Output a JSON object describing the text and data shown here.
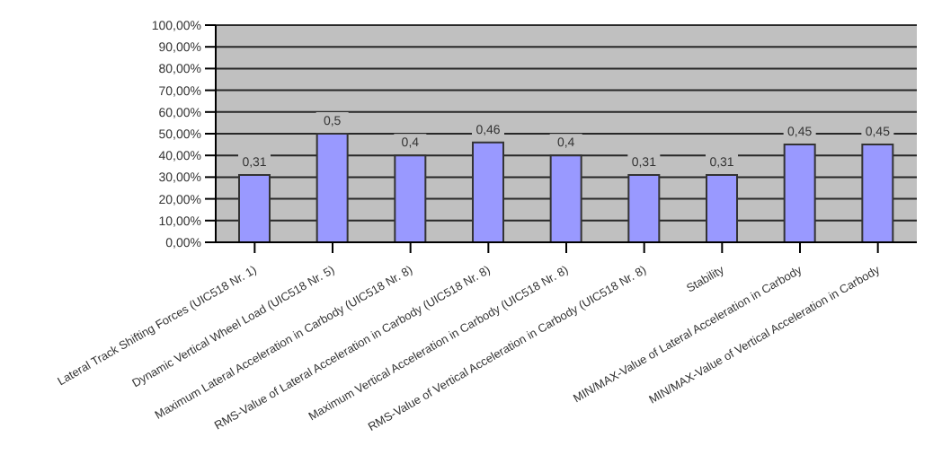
{
  "chart_data": {
    "type": "bar",
    "categories": [
      "Lateral Track Shifting Forces (UIC518 Nr. 1)",
      "Dynamic Vertical Wheel Load (UIC518 Nr. 5)",
      "Maximum Lateral Acceleration in Carbody (UIC518 Nr. 8)",
      "RMS-Value of Lateral Acceleration in Carbody (UIC518 Nr. 8)",
      "Maximum Vertical Acceleration in Carbody (UIC518 Nr. 8)",
      "RMS-Value of Vertical Acceleration in Carbody (UIC518 Nr. 8)",
      "Stability",
      "MIN/MAX-Value of Lateral Acceleration in Carbody",
      "MIN/MAX-Value of Vertical Acceleration in Carbody"
    ],
    "values": [
      0.31,
      0.5,
      0.4,
      0.46,
      0.4,
      0.31,
      0.31,
      0.45,
      0.45
    ],
    "value_labels": [
      "0,31",
      "0,5",
      "0,4",
      "0,46",
      "0,4",
      "0,31",
      "0,31",
      "0,45",
      "0,45"
    ],
    "color": "#9999ff",
    "ylim": [
      0,
      1
    ],
    "yticks": [
      {
        "value": 0,
        "label": "0,00%"
      },
      {
        "value": 0.1,
        "label": "10,00%"
      },
      {
        "value": 0.2,
        "label": "20,00%"
      },
      {
        "value": 0.3,
        "label": "30,00%"
      },
      {
        "value": 0.4,
        "label": "40,00%"
      },
      {
        "value": 0.5,
        "label": "50,00%"
      },
      {
        "value": 0.6,
        "label": "60,00%"
      },
      {
        "value": 0.7,
        "label": "70,00%"
      },
      {
        "value": 0.8,
        "label": "80,00%"
      },
      {
        "value": 0.9,
        "label": "90,00%"
      },
      {
        "value": 1,
        "label": "100,00%"
      }
    ],
    "grid": "y"
  }
}
